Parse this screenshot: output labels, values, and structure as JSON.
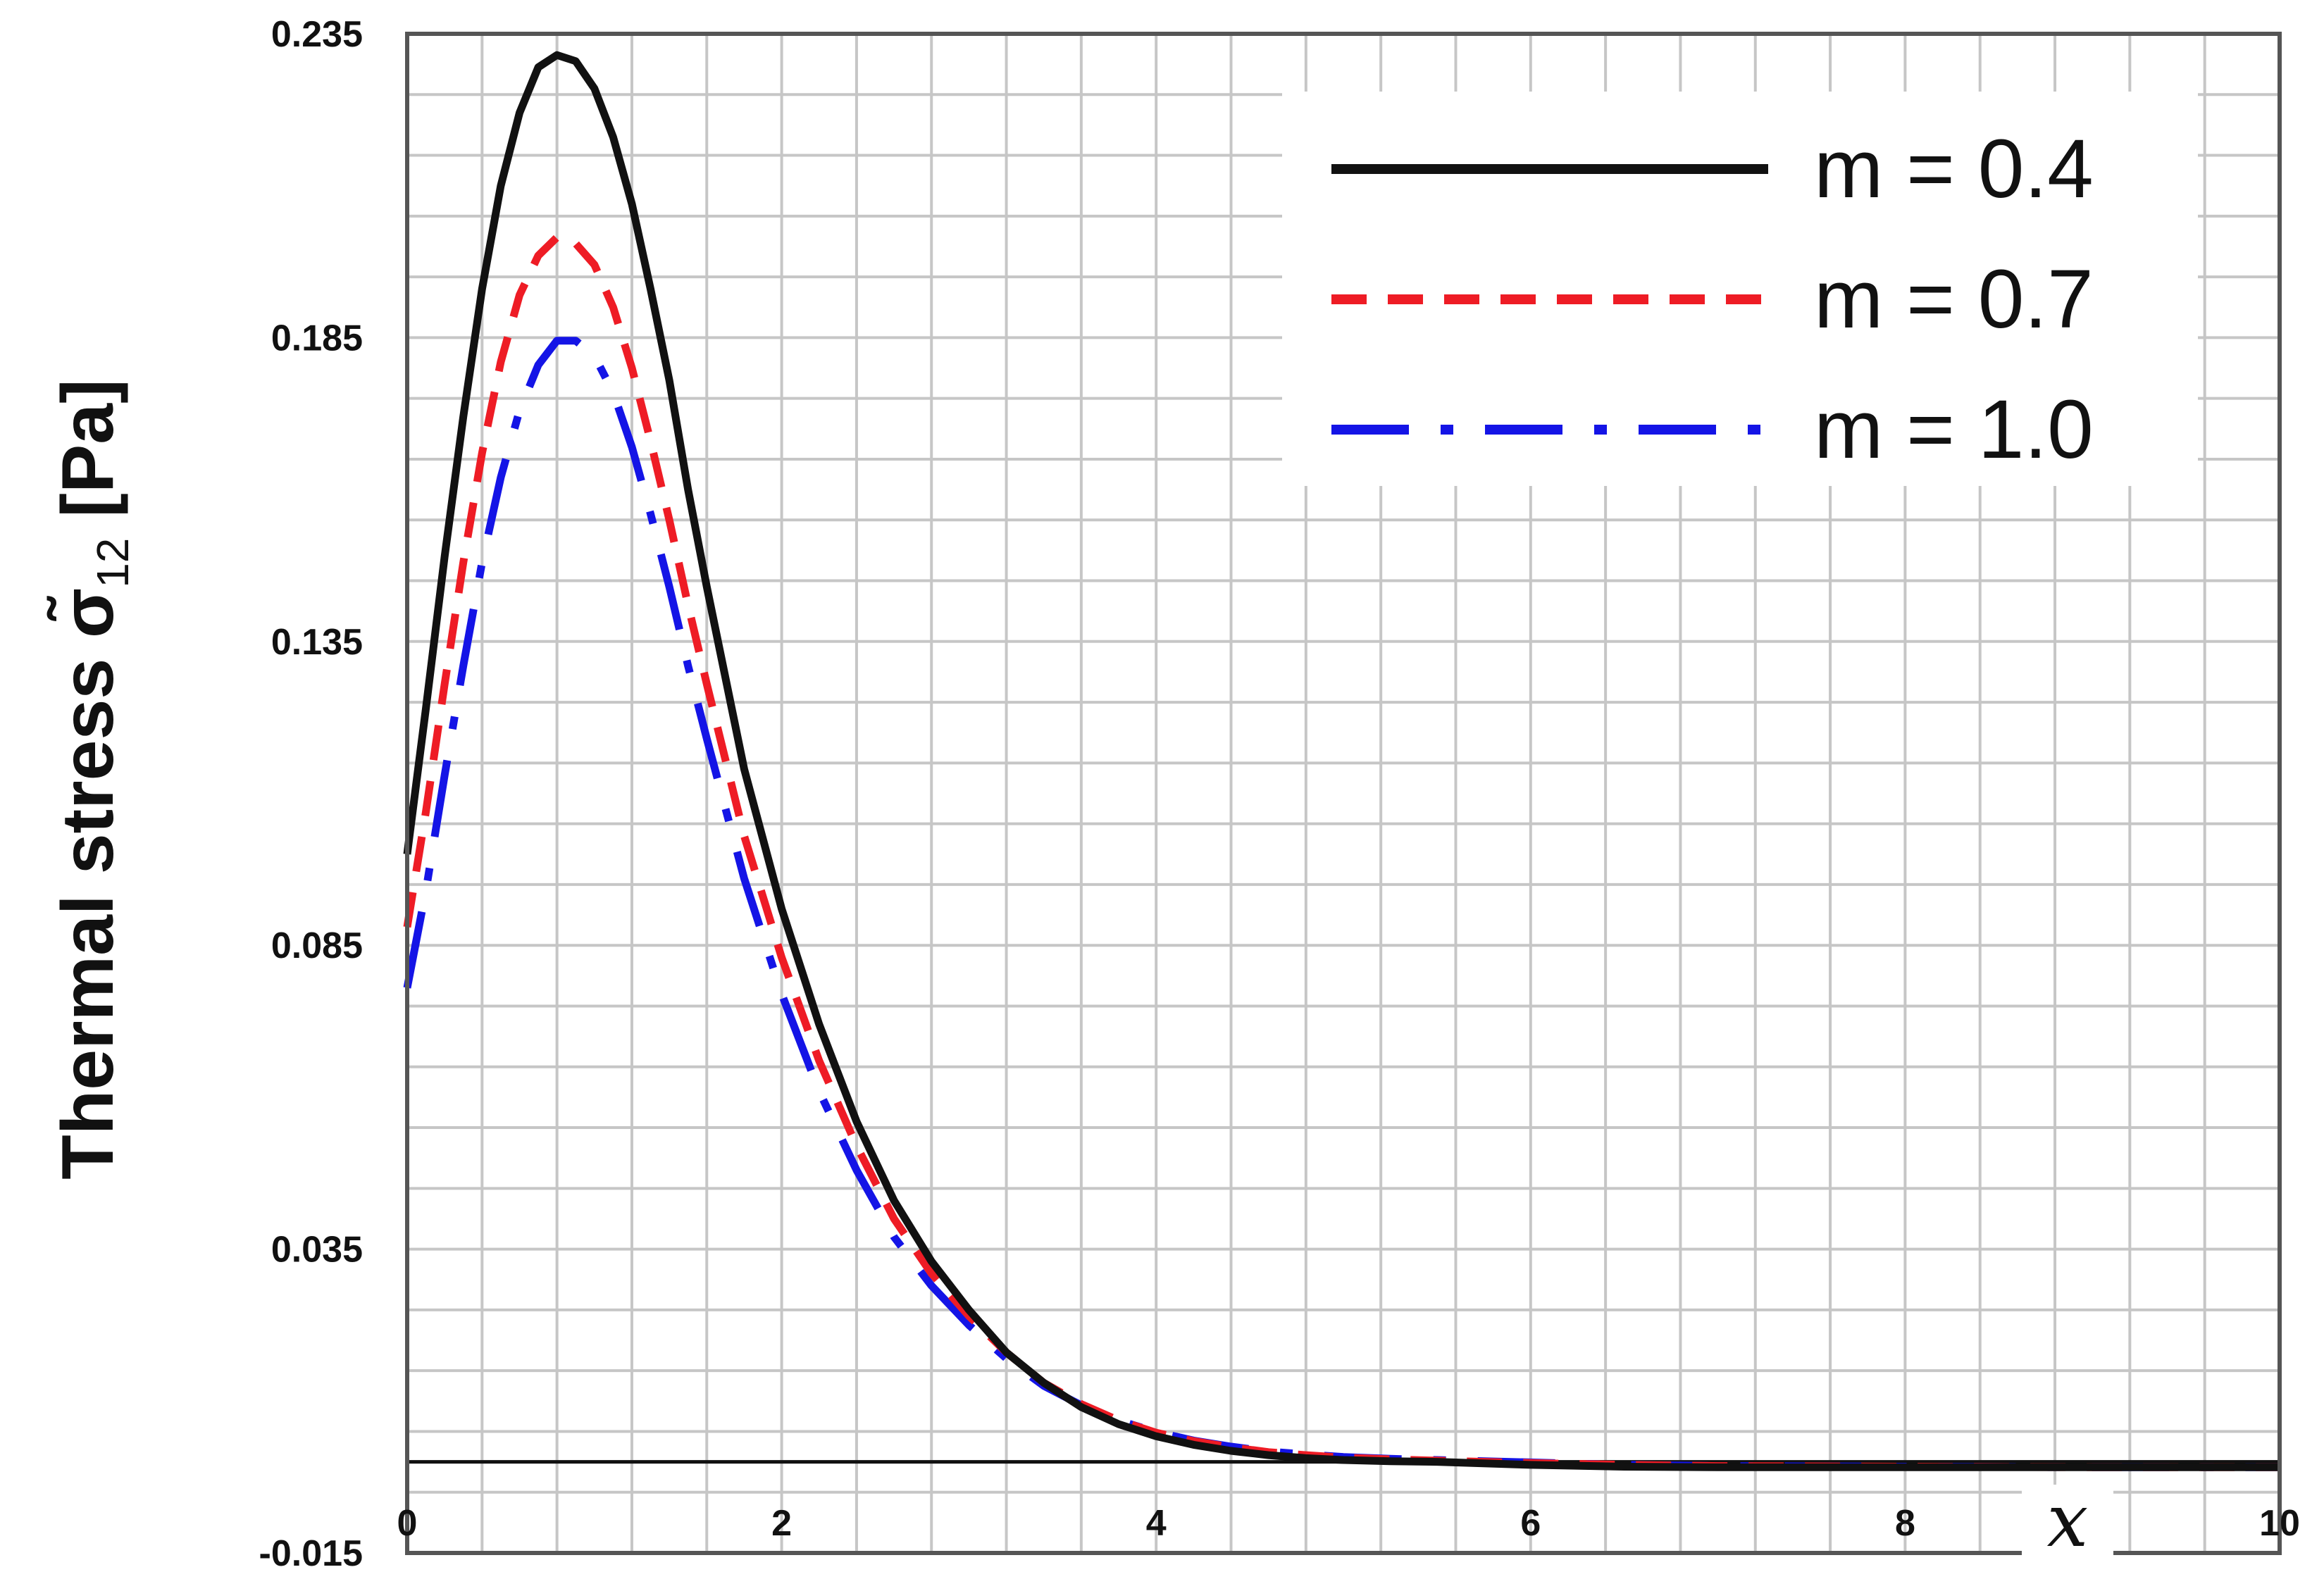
{
  "chart_data": {
    "type": "line",
    "title": "",
    "xlabel": "x",
    "ylabel": {
      "prefix": "Thermal stress ",
      "symbol": "σ̃",
      "subscript": "12",
      "unit": " [Pa]"
    },
    "xlim": [
      0,
      10
    ],
    "ylim": [
      -0.015,
      0.235
    ],
    "x_ticks": [
      {
        "value": 0,
        "label": "0"
      },
      {
        "value": 2,
        "label": "2"
      },
      {
        "value": 4,
        "label": "4"
      },
      {
        "value": 6,
        "label": "6"
      },
      {
        "value": 8,
        "label": "8"
      },
      {
        "value": 10,
        "label": "10"
      }
    ],
    "y_ticks": [
      {
        "value": -0.015,
        "label": "-0.015"
      },
      {
        "value": 0.035,
        "label": "0.035"
      },
      {
        "value": 0.085,
        "label": "0.085"
      },
      {
        "value": 0.135,
        "label": "0.135"
      },
      {
        "value": 0.185,
        "label": "0.185"
      },
      {
        "value": 0.235,
        "label": "0.235"
      }
    ],
    "grid": true,
    "legend_position": "top-right",
    "x": [
      0,
      0.1,
      0.2,
      0.3,
      0.4,
      0.5,
      0.6,
      0.7,
      0.8,
      0.9,
      1.0,
      1.1,
      1.2,
      1.3,
      1.4,
      1.5,
      1.6,
      1.8,
      2.0,
      2.2,
      2.4,
      2.6,
      2.8,
      3.0,
      3.2,
      3.4,
      3.6,
      3.8,
      4.0,
      4.2,
      4.4,
      4.6,
      4.8,
      5.0,
      5.25,
      5.5,
      6.0,
      6.5,
      7.0,
      8.0,
      9.0,
      10.0
    ],
    "series": [
      {
        "name": "m = 0.4",
        "color": "#111111",
        "dash": "solid",
        "values": [
          0.1,
          0.124,
          0.149,
          0.172,
          0.193,
          0.21,
          0.222,
          0.2295,
          0.2315,
          0.2305,
          0.226,
          0.218,
          0.207,
          0.193,
          0.178,
          0.16,
          0.144,
          0.114,
          0.091,
          0.072,
          0.056,
          0.043,
          0.033,
          0.025,
          0.018,
          0.013,
          0.009,
          0.0062,
          0.0042,
          0.0028,
          0.0018,
          0.0011,
          0.0006,
          0.0003,
          0.0001,
          0.0,
          -0.0005,
          -0.0008,
          -0.0009,
          -0.0009,
          -0.0009,
          -0.0009
        ]
      },
      {
        "name": "m = 0.7",
        "color": "#ee1c25",
        "dash": "short-dash",
        "values": [
          0.088,
          0.107,
          0.128,
          0.148,
          0.166,
          0.181,
          0.192,
          0.1985,
          0.2015,
          0.2005,
          0.197,
          0.19,
          0.18,
          0.168,
          0.155,
          0.141,
          0.128,
          0.103,
          0.083,
          0.066,
          0.052,
          0.04,
          0.031,
          0.024,
          0.018,
          0.013,
          0.0095,
          0.0068,
          0.0048,
          0.0034,
          0.0024,
          0.0016,
          0.0011,
          0.0007,
          0.0004,
          0.0002,
          -0.0002,
          -0.0005,
          -0.0007,
          -0.0008,
          -0.0009,
          -0.0009
        ]
      },
      {
        "name": "m = 1.0",
        "color": "#1414e6",
        "dash": "long-dash-dot",
        "values": [
          0.078,
          0.094,
          0.113,
          0.131,
          0.148,
          0.162,
          0.173,
          0.1805,
          0.1845,
          0.1845,
          0.182,
          0.176,
          0.167,
          0.156,
          0.144,
          0.131,
          0.119,
          0.096,
          0.077,
          0.061,
          0.048,
          0.037,
          0.029,
          0.0225,
          0.017,
          0.0125,
          0.0093,
          0.0068,
          0.0049,
          0.0035,
          0.0025,
          0.0017,
          0.0012,
          0.0008,
          0.0005,
          0.0003,
          -0.0001,
          -0.0005,
          -0.0007,
          -0.0008,
          -0.0009,
          -0.0009
        ]
      }
    ]
  }
}
